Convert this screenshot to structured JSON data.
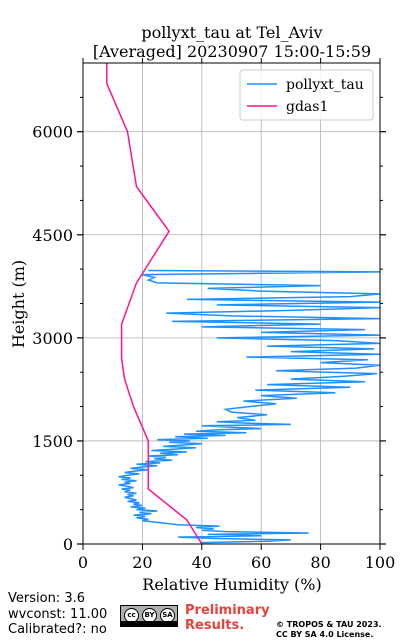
{
  "chart_data": {
    "type": "line",
    "title_line1": "pollyxt_tau at Tel_Aviv",
    "title_line2": "[Averaged] 20230907 15:00-15:59",
    "xlabel": "Relative Humidity (%)",
    "ylabel": "Height (m)",
    "xlim": [
      0,
      100
    ],
    "ylim": [
      0,
      7000
    ],
    "xticks": [
      "0",
      "20",
      "40",
      "60",
      "80",
      "100"
    ],
    "yticks": [
      "0",
      "1500",
      "3000",
      "4500",
      "6000"
    ],
    "grid": true,
    "legend_position": "top-right",
    "series": [
      {
        "name": "pollyxt_tau",
        "color": "#1e90ff",
        "points": [
          [
            40,
            20
          ],
          [
            62,
            40
          ],
          [
            70,
            60
          ],
          [
            45,
            80
          ],
          [
            32,
            100
          ],
          [
            60,
            120
          ],
          [
            42,
            140
          ],
          [
            76,
            160
          ],
          [
            48,
            180
          ],
          [
            40,
            200
          ],
          [
            44,
            220
          ],
          [
            38,
            240
          ],
          [
            46,
            260
          ],
          [
            32,
            280
          ],
          [
            28,
            300
          ],
          [
            24,
            320
          ],
          [
            20,
            340
          ],
          [
            22,
            360
          ],
          [
            18,
            380
          ],
          [
            21,
            400
          ],
          [
            17,
            420
          ],
          [
            23,
            440
          ],
          [
            19,
            460
          ],
          [
            25,
            480
          ],
          [
            18,
            500
          ],
          [
            21,
            520
          ],
          [
            16,
            540
          ],
          [
            20,
            560
          ],
          [
            17,
            580
          ],
          [
            19,
            600
          ],
          [
            15,
            620
          ],
          [
            18,
            640
          ],
          [
            16,
            660
          ],
          [
            14,
            680
          ],
          [
            17,
            700
          ],
          [
            15,
            720
          ],
          [
            18,
            740
          ],
          [
            14,
            760
          ],
          [
            16,
            780
          ],
          [
            13,
            800
          ],
          [
            17,
            820
          ],
          [
            15,
            840
          ],
          [
            12,
            860
          ],
          [
            16,
            880
          ],
          [
            14,
            900
          ],
          [
            18,
            920
          ],
          [
            13,
            940
          ],
          [
            16,
            960
          ],
          [
            12,
            980
          ],
          [
            15,
            1000
          ],
          [
            19,
            1020
          ],
          [
            14,
            1040
          ],
          [
            17,
            1060
          ],
          [
            22,
            1080
          ],
          [
            16,
            1100
          ],
          [
            20,
            1120
          ],
          [
            25,
            1140
          ],
          [
            18,
            1160
          ],
          [
            26,
            1180
          ],
          [
            21,
            1200
          ],
          [
            30,
            1220
          ],
          [
            24,
            1240
          ],
          [
            28,
            1260
          ],
          [
            22,
            1280
          ],
          [
            32,
            1300
          ],
          [
            26,
            1320
          ],
          [
            35,
            1340
          ],
          [
            23,
            1360
          ],
          [
            30,
            1380
          ],
          [
            38,
            1400
          ],
          [
            27,
            1420
          ],
          [
            33,
            1440
          ],
          [
            40,
            1460
          ],
          [
            29,
            1480
          ],
          [
            36,
            1500
          ],
          [
            25,
            1520
          ],
          [
            42,
            1540
          ],
          [
            31,
            1560
          ],
          [
            48,
            1580
          ],
          [
            34,
            1600
          ],
          [
            55,
            1620
          ],
          [
            38,
            1640
          ],
          [
            45,
            1660
          ],
          [
            60,
            1680
          ],
          [
            50,
            1700
          ],
          [
            40,
            1720
          ],
          [
            70,
            1740
          ],
          [
            55,
            1760
          ],
          [
            45,
            1780
          ],
          [
            58,
            1800
          ],
          [
            52,
            1840
          ],
          [
            62,
            1880
          ],
          [
            50,
            1920
          ],
          [
            48,
            1960
          ],
          [
            56,
            2000
          ],
          [
            65,
            2040
          ],
          [
            54,
            2080
          ],
          [
            72,
            2120
          ],
          [
            60,
            2160
          ],
          [
            85,
            2200
          ],
          [
            58,
            2240
          ],
          [
            90,
            2280
          ],
          [
            62,
            2320
          ],
          [
            95,
            2360
          ],
          [
            70,
            2400
          ],
          [
            88,
            2440
          ],
          [
            99,
            2480
          ],
          [
            65,
            2520
          ],
          [
            92,
            2560
          ],
          [
            100,
            2600
          ],
          [
            80,
            2640
          ],
          [
            96,
            2680
          ],
          [
            55,
            2720
          ],
          [
            100,
            2760
          ],
          [
            70,
            2800
          ],
          [
            98,
            2840
          ],
          [
            62,
            2880
          ],
          [
            100,
            2920
          ],
          [
            85,
            2960
          ],
          [
            45,
            3000
          ],
          [
            100,
            3040
          ],
          [
            60,
            3080
          ],
          [
            95,
            3120
          ],
          [
            40,
            3160
          ],
          [
            80,
            3200
          ],
          [
            30,
            3240
          ],
          [
            100,
            3280
          ],
          [
            50,
            3320
          ],
          [
            28,
            3360
          ],
          [
            70,
            3400
          ],
          [
            100,
            3440
          ],
          [
            45,
            3480
          ],
          [
            100,
            3520
          ],
          [
            35,
            3560
          ],
          [
            90,
            3600
          ],
          [
            100,
            3640
          ],
          [
            60,
            3680
          ],
          [
            42,
            3720
          ],
          [
            80,
            3760
          ],
          [
            25,
            3800
          ],
          [
            22,
            3840
          ],
          [
            24,
            3880
          ],
          [
            20,
            3920
          ],
          [
            100,
            3960
          ],
          [
            22,
            3980
          ]
        ]
      },
      {
        "name": "gdas1",
        "color": "#ff1493",
        "points": [
          [
            40,
            0
          ],
          [
            35,
            350
          ],
          [
            22,
            800
          ],
          [
            22,
            1100
          ],
          [
            22,
            1500
          ],
          [
            17,
            2000
          ],
          [
            14,
            2400
          ],
          [
            13,
            2700
          ],
          [
            13,
            3200
          ],
          [
            18,
            3800
          ],
          [
            29,
            4550
          ],
          [
            18,
            5200
          ],
          [
            15,
            6000
          ],
          [
            8,
            6700
          ],
          [
            8,
            7000
          ]
        ]
      }
    ]
  },
  "footer": {
    "version": "Version: 3.6",
    "wvconst": "wvconst:  11.00",
    "calibrated": "Calibrated?: no",
    "preliminary_line1": "Preliminary",
    "preliminary_line2": "Results.",
    "copyright_line1": "© TROPOS & TAU 2023.",
    "copyright_line2": "CC BY SA 4.0 License.",
    "cc_label": "cc",
    "by_label": "BY",
    "sa_label": "SA"
  }
}
